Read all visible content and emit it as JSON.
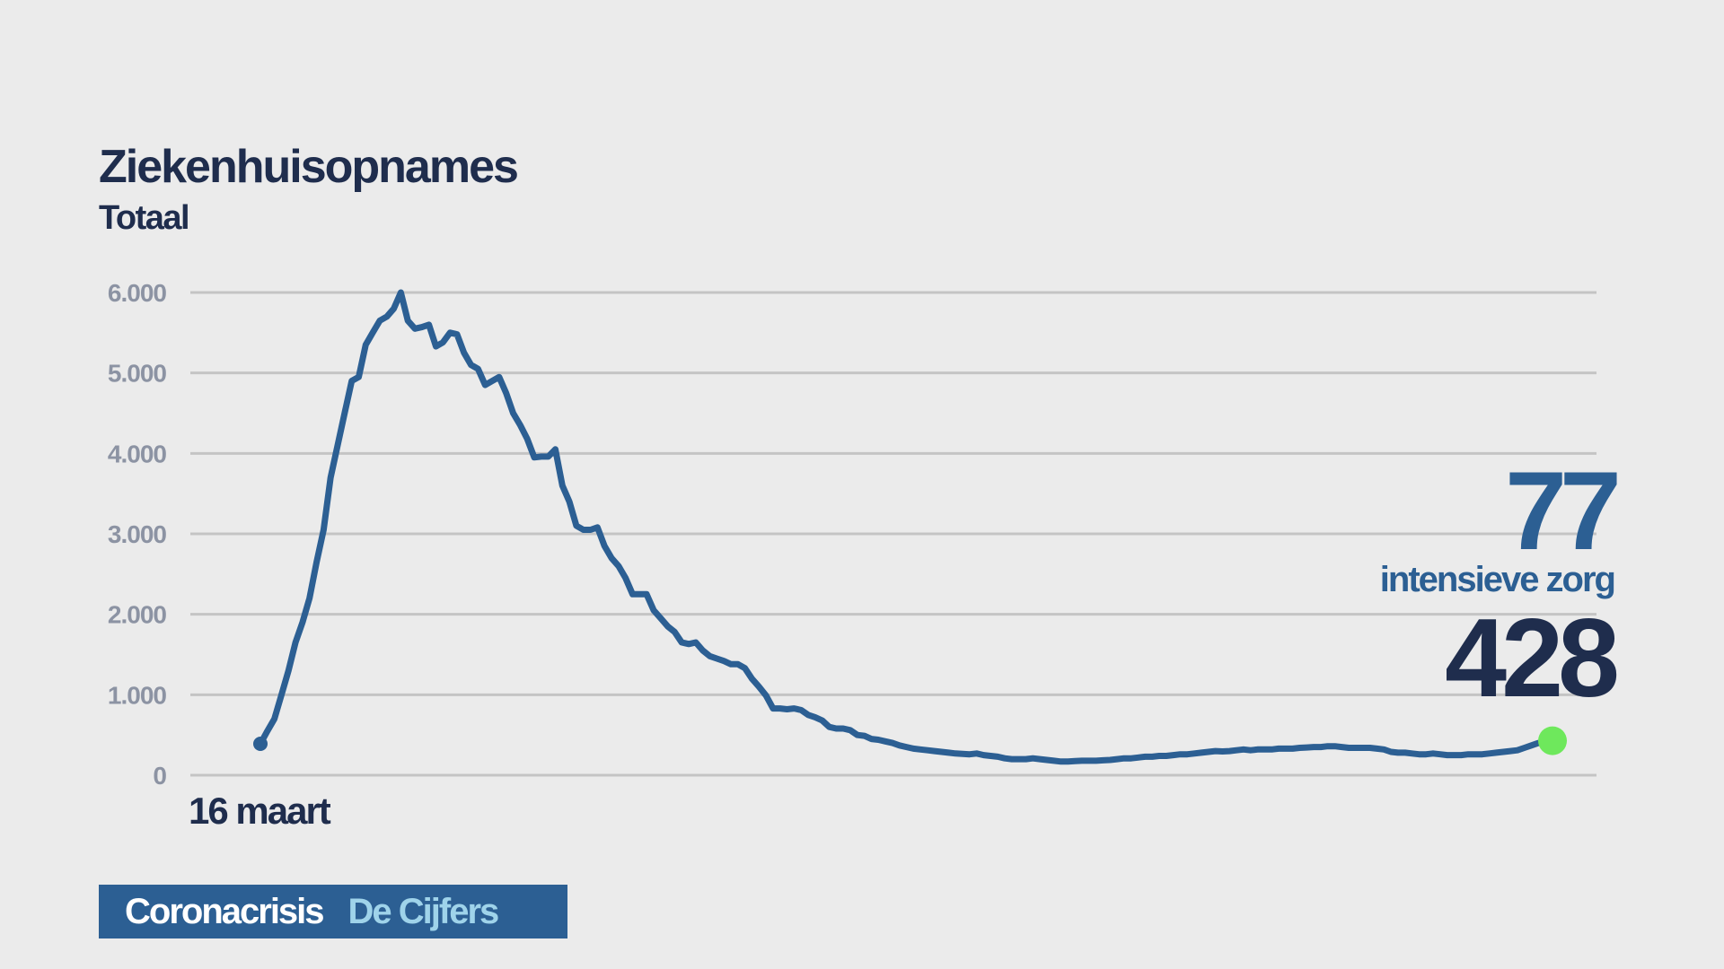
{
  "header": {
    "title": "Ziekenhuisopnames",
    "subtitle": "Totaal"
  },
  "chart_data": {
    "type": "line",
    "title": "Ziekenhuisopnames",
    "subtitle": "Totaal",
    "xlabel": "",
    "ylabel": "",
    "x_tick_labels": [
      "16 maart"
    ],
    "y_ticks": [
      0,
      1000,
      2000,
      3000,
      4000,
      5000,
      6000
    ],
    "y_tick_labels": [
      "0",
      "1.000",
      "2.000",
      "3.000",
      "4.000",
      "5.000",
      "6.000"
    ],
    "ylim": [
      0,
      6000
    ],
    "grid": true,
    "legend": "none",
    "line_color": "#2c5f93",
    "end_marker_color": "#6ee85c",
    "series": [
      {
        "values": [
          390,
          550,
          700,
          1000,
          1300,
          1650,
          1900,
          2200,
          2650,
          3050,
          3700,
          4100,
          4500,
          4900,
          4950,
          5350,
          5500,
          5650,
          5700,
          5800,
          6000,
          5650,
          5550,
          5570,
          5600,
          5330,
          5380,
          5500,
          5480,
          5250,
          5100,
          5050,
          4850,
          4900,
          4950,
          4750,
          4500,
          4350,
          4180,
          3950,
          3960,
          3960,
          4050,
          3600,
          3400,
          3100,
          3050,
          3050,
          3080,
          2850,
          2700,
          2600,
          2450,
          2250,
          2250,
          2250,
          2050,
          1950,
          1850,
          1780,
          1650,
          1630,
          1650,
          1550,
          1480,
          1450,
          1420,
          1380,
          1380,
          1330,
          1200,
          1100,
          990,
          830,
          830,
          820,
          830,
          810,
          750,
          720,
          680,
          600,
          580,
          580,
          560,
          500,
          490,
          450,
          440,
          420,
          400,
          370,
          350,
          330,
          320,
          310,
          300,
          290,
          280,
          270,
          265,
          260,
          270,
          250,
          240,
          230,
          210,
          200,
          200,
          200,
          210,
          200,
          190,
          180,
          170,
          170,
          175,
          180,
          180,
          180,
          185,
          190,
          200,
          210,
          210,
          220,
          230,
          230,
          240,
          240,
          250,
          260,
          260,
          270,
          280,
          290,
          300,
          295,
          300,
          310,
          320,
          310,
          320,
          320,
          320,
          330,
          330,
          330,
          340,
          345,
          350,
          350,
          360,
          360,
          350,
          340,
          340,
          340,
          340,
          330,
          320,
          290,
          280,
          280,
          270,
          260,
          260,
          270,
          260,
          250,
          250,
          250,
          260,
          260,
          260,
          270,
          280,
          290,
          300,
          310,
          340,
          370,
          400,
          410,
          428
        ]
      }
    ]
  },
  "annotation": {
    "intensive_care_value": "77",
    "intensive_care_label": "intensieve zorg",
    "total_value": "428"
  },
  "footer": {
    "label_a": "Coronacrisis",
    "label_b": "De Cijfers"
  }
}
